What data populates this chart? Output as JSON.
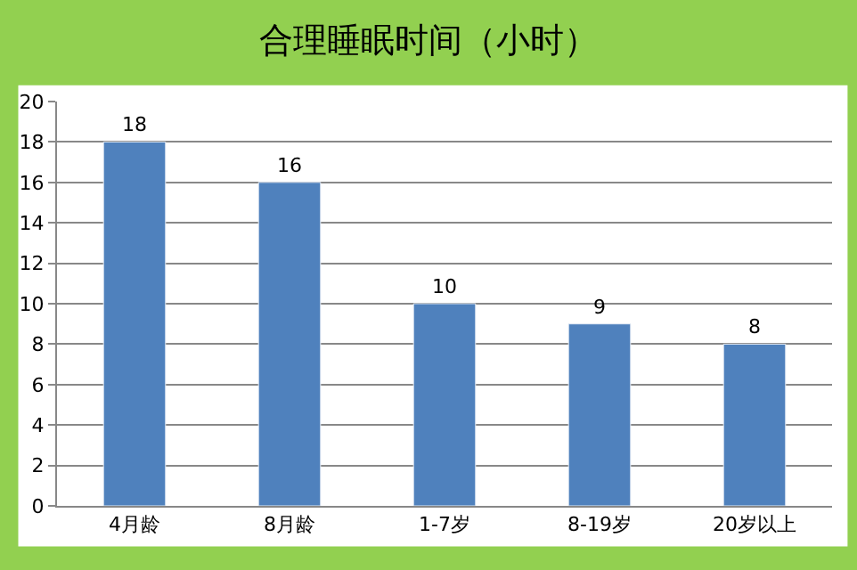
{
  "chart_data": {
    "type": "bar",
    "title": "合理睡眠时间（小时）",
    "categories": [
      "4月龄",
      "8月龄",
      "1-7岁",
      "8-19岁",
      "20岁以上"
    ],
    "values": [
      18,
      16,
      10,
      9,
      8
    ],
    "color": "#4f81bd",
    "ylim": [
      0,
      20
    ],
    "yticks": [
      0,
      2,
      4,
      6,
      8,
      10,
      12,
      14,
      16,
      18,
      20
    ],
    "grid": "y",
    "data_labels": true
  }
}
